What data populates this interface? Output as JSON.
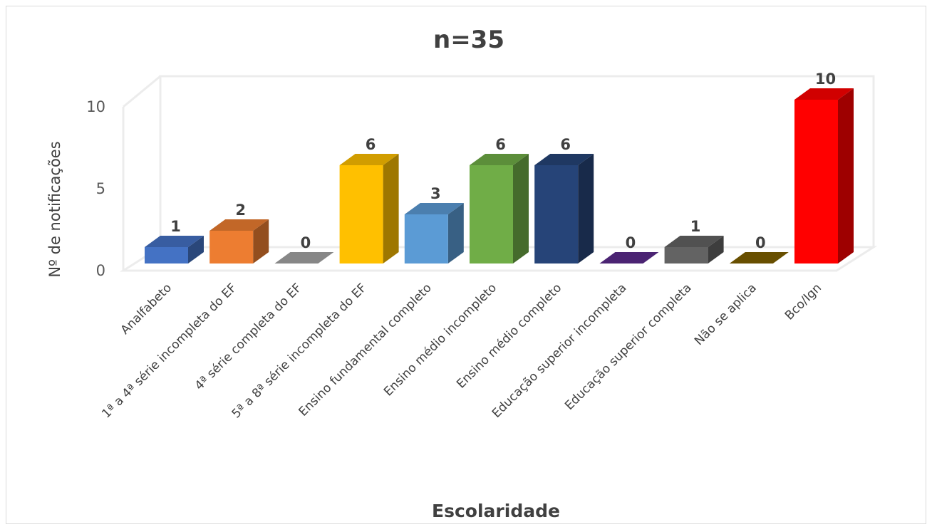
{
  "chart_data": {
    "type": "bar",
    "title": "n=35",
    "xlabel": "Escolaridade",
    "ylabel": "Nº de notificações",
    "ylim": [
      0,
      10
    ],
    "yticks": [
      0,
      5,
      10
    ],
    "grid": false,
    "legend": "none",
    "style": "3d-column",
    "categories": [
      "Analfabeto",
      "1ª a 4ª série incompleta do EF",
      "4ª série completa do EF",
      "5ª a 8ª série incompleta do EF",
      "Ensino fundamental completo",
      "Ensino médio incompleto",
      "Ensino médio completo",
      "Educação superior incompleta",
      "Educação superior completa",
      "Não se aplica",
      "Bco/Ign"
    ],
    "values": [
      1,
      2,
      0,
      6,
      3,
      6,
      6,
      0,
      1,
      0,
      10
    ],
    "data_labels": [
      "1",
      "2",
      "0",
      "6",
      "3",
      "6",
      "6",
      "0",
      "1",
      "0",
      "10"
    ],
    "colors": [
      "#4472C4",
      "#ED7D31",
      "#A5A5A5",
      "#FFC000",
      "#5B9BD5",
      "#70AD47",
      "#264478",
      "#5B2C8C",
      "#636363",
      "#7F6000",
      "#FF0000"
    ]
  }
}
